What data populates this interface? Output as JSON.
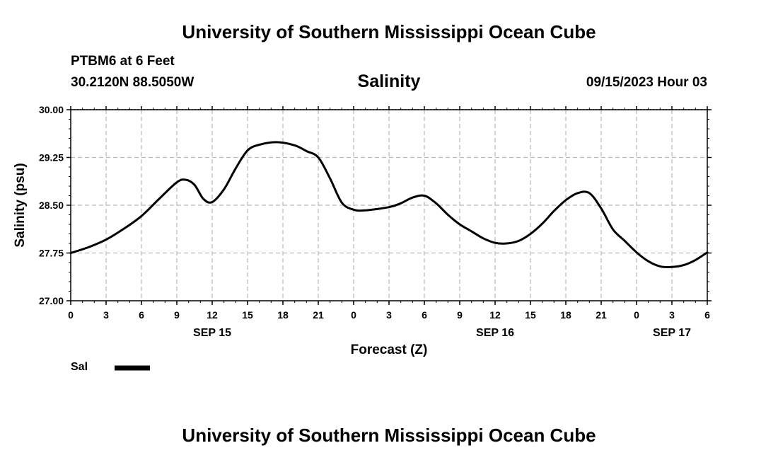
{
  "header": {
    "title": "University of Southern Mississippi Ocean Cube",
    "station": "PTBM6 at 6 Feet",
    "coords": "30.2120N  88.5050W",
    "run_time": "09/15/2023 Hour 03"
  },
  "footer": {
    "title": "University of Southern Mississippi Ocean Cube"
  },
  "legend": {
    "label": "Sal",
    "color": "#000000"
  },
  "chart_data": {
    "type": "line",
    "title": "Salinity",
    "xlabel": "Forecast (Z)",
    "ylabel": "Salinity (psu)",
    "xlim": [
      0,
      54
    ],
    "ylim": [
      27.0,
      30.0
    ],
    "grid": true,
    "legend_position": "bottom-left",
    "y_ticks": [
      "27.00",
      "27.75",
      "28.50",
      "29.25",
      "30.00"
    ],
    "x_ticks": [
      "0",
      "3",
      "6",
      "9",
      "12",
      "15",
      "18",
      "21",
      "0",
      "3",
      "6",
      "9",
      "12",
      "15",
      "18",
      "21",
      "0",
      "3",
      "6"
    ],
    "date_labels": [
      {
        "label": "SEP 15",
        "hour": 12
      },
      {
        "label": "SEP 16",
        "hour": 36
      },
      {
        "label": "SEP 17",
        "hour": 51
      }
    ],
    "series": [
      {
        "name": "Sal",
        "color": "#000000",
        "x": [
          0,
          1.5,
          3,
          4.5,
          6,
          7.5,
          9,
          9.75,
          10.5,
          11.25,
          12,
          13,
          14,
          15,
          16,
          17.5,
          19,
          20,
          21,
          22,
          23,
          24,
          25,
          27,
          28,
          29,
          30,
          31,
          32,
          33,
          34,
          35,
          36,
          37,
          38,
          39,
          40,
          41,
          42,
          43,
          44,
          45,
          46,
          47,
          48,
          49,
          50,
          51,
          52,
          53,
          54
        ],
        "y": [
          27.75,
          27.84,
          27.96,
          28.13,
          28.33,
          28.6,
          28.86,
          28.9,
          28.82,
          28.6,
          28.55,
          28.75,
          29.08,
          29.36,
          29.45,
          29.49,
          29.44,
          29.35,
          29.25,
          28.92,
          28.54,
          28.43,
          28.42,
          28.47,
          28.53,
          28.62,
          28.65,
          28.53,
          28.35,
          28.2,
          28.09,
          27.98,
          27.91,
          27.9,
          27.94,
          28.05,
          28.21,
          28.41,
          28.58,
          28.69,
          28.69,
          28.45,
          28.12,
          27.94,
          27.76,
          27.62,
          27.54,
          27.53,
          27.56,
          27.64,
          27.76
        ]
      }
    ]
  }
}
